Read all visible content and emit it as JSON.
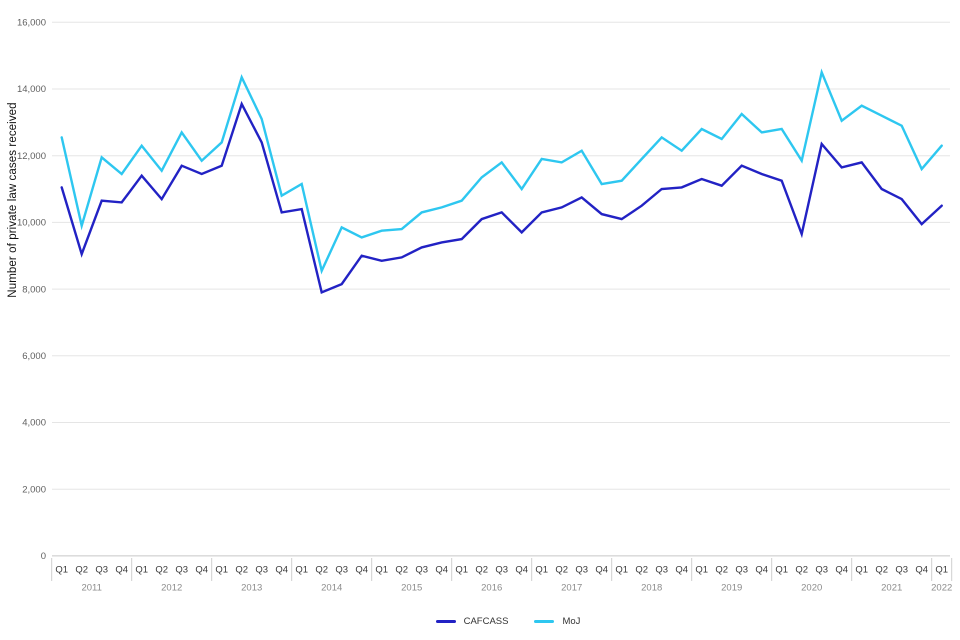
{
  "chart": {
    "y_axis_title": "Number of private law cases received",
    "legend_items": [
      {
        "label": "CAFCASS",
        "color": "#2222C4"
      },
      {
        "label": "MoJ",
        "color": "#2EC7F0"
      }
    ]
  },
  "chart_data": {
    "type": "line",
    "ylabel": "Number of private law cases received",
    "xlabel": "",
    "ylim": [
      0,
      16000
    ],
    "ytick_step": 2000,
    "ytick_labels": [
      "0",
      "2,000",
      "4,000",
      "6,000",
      "8,000",
      "10,000",
      "12,000",
      "14,000",
      "16,000"
    ],
    "grid": "horizontal",
    "legend_position": "bottom",
    "years": [
      {
        "label": "2011",
        "quarters": 4
      },
      {
        "label": "2012",
        "quarters": 4
      },
      {
        "label": "2013",
        "quarters": 4
      },
      {
        "label": "2014",
        "quarters": 4
      },
      {
        "label": "2015",
        "quarters": 4
      },
      {
        "label": "2016",
        "quarters": 4
      },
      {
        "label": "2017",
        "quarters": 4
      },
      {
        "label": "2018",
        "quarters": 4
      },
      {
        "label": "2019",
        "quarters": 4
      },
      {
        "label": "2020",
        "quarters": 4
      },
      {
        "label": "2021",
        "quarters": 4
      },
      {
        "label": "2022",
        "quarters": 1
      }
    ],
    "x_quarters": [
      "2011 Q1",
      "2011 Q2",
      "2011 Q3",
      "2011 Q4",
      "2012 Q1",
      "2012 Q2",
      "2012 Q3",
      "2012 Q4",
      "2013 Q1",
      "2013 Q2",
      "2013 Q3",
      "2013 Q4",
      "2014 Q1",
      "2014 Q2",
      "2014 Q3",
      "2014 Q4",
      "2015 Q1",
      "2015 Q2",
      "2015 Q3",
      "2015 Q4",
      "2016 Q1",
      "2016 Q2",
      "2016 Q3",
      "2016 Q4",
      "2017 Q1",
      "2017 Q2",
      "2017 Q3",
      "2017 Q4",
      "2018 Q1",
      "2018 Q2",
      "2018 Q3",
      "2018 Q4",
      "2019 Q1",
      "2019 Q2",
      "2019 Q3",
      "2019 Q4",
      "2020 Q1",
      "2020 Q2",
      "2020 Q3",
      "2020 Q4",
      "2021 Q1",
      "2021 Q2",
      "2021 Q3",
      "2021 Q4",
      "2022 Q1"
    ],
    "series": [
      {
        "name": "CAFCASS",
        "color": "#2222C4",
        "values": [
          11050,
          9050,
          10650,
          10600,
          11400,
          10700,
          11700,
          11450,
          11700,
          13550,
          12400,
          10300,
          10400,
          7900,
          8150,
          9000,
          8850,
          8950,
          9250,
          9400,
          9500,
          10100,
          10300,
          9700,
          10300,
          10450,
          10750,
          10250,
          10100,
          10500,
          11000,
          11050,
          11300,
          11100,
          11700,
          11450,
          11250,
          9650,
          12350,
          11650,
          11800,
          11000,
          10700,
          9950,
          10500
        ]
      },
      {
        "name": "MoJ",
        "color": "#2EC7F0",
        "values": [
          12550,
          9900,
          11950,
          11450,
          12300,
          11550,
          12700,
          11850,
          12400,
          14350,
          13100,
          10800,
          11150,
          8550,
          9850,
          9550,
          9750,
          9800,
          10300,
          10450,
          10650,
          11350,
          11800,
          11000,
          11900,
          11800,
          12150,
          11150,
          11250,
          11900,
          12550,
          12150,
          12800,
          12500,
          13250,
          12700,
          12800,
          11850,
          14500,
          13050,
          13500,
          13200,
          12900,
          11600,
          12300
        ]
      }
    ],
    "style": {
      "gridline_color": "#E5E5E5",
      "axis_line_color": "#C7C7C7",
      "separator_color": "#CFCFCF",
      "ytick_color": "#606060",
      "quarter_label_color": "#3A3A3A",
      "year_label_color": "#8C8C8C"
    }
  }
}
